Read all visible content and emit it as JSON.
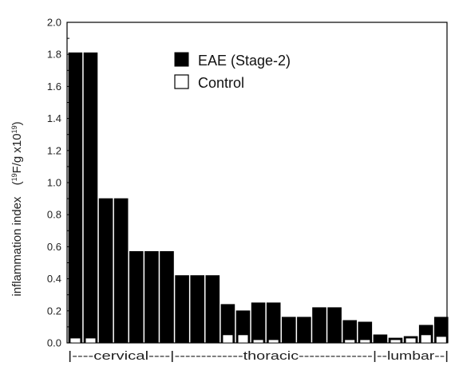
{
  "chart_data": {
    "type": "bar",
    "title": "",
    "xlabel": "",
    "ylabel": "inflammation index",
    "ylabel_unit_parts": {
      "open": "(",
      "sup1": "19",
      "mid": "F/g  x10",
      "sup2": "19",
      "close": ")"
    },
    "ylim": [
      0,
      2.0
    ],
    "yticks": [
      "0.0",
      "0.2",
      "0.4",
      "0.6",
      "0.8",
      "1.0",
      "1.2",
      "1.4",
      "1.6",
      "1.8",
      "2.0"
    ],
    "series": [
      {
        "name": "EAE (Stage-2)",
        "color": "#000000",
        "values": [
          1.81,
          1.81,
          0.9,
          0.9,
          0.57,
          0.57,
          0.57,
          0.42,
          0.42,
          0.42,
          0.24,
          0.2,
          0.25,
          0.25,
          0.16,
          0.16,
          0.22,
          0.22,
          0.14,
          0.13,
          0.05,
          0.03,
          0.04,
          0.11,
          0.16
        ]
      },
      {
        "name": "Control",
        "color": "#ffffff",
        "values": [
          0.03,
          0.03,
          0.0,
          0.0,
          0.0,
          0.0,
          0.0,
          0.0,
          0.0,
          0.0,
          0.05,
          0.05,
          0.02,
          0.02,
          0.0,
          0.0,
          0.0,
          0.0,
          0.02,
          0.02,
          0.0,
          0.02,
          0.03,
          0.05,
          0.04
        ]
      }
    ],
    "regions": [
      {
        "label": "|----cervical----|",
        "start": 0,
        "end": 6
      },
      {
        "label": "-------------thoracic--------------",
        "start": 7,
        "end": 19
      },
      {
        "label": "|--lumbar--|",
        "start": 20,
        "end": 24
      }
    ],
    "legend_position": "top-center",
    "grid": false
  }
}
